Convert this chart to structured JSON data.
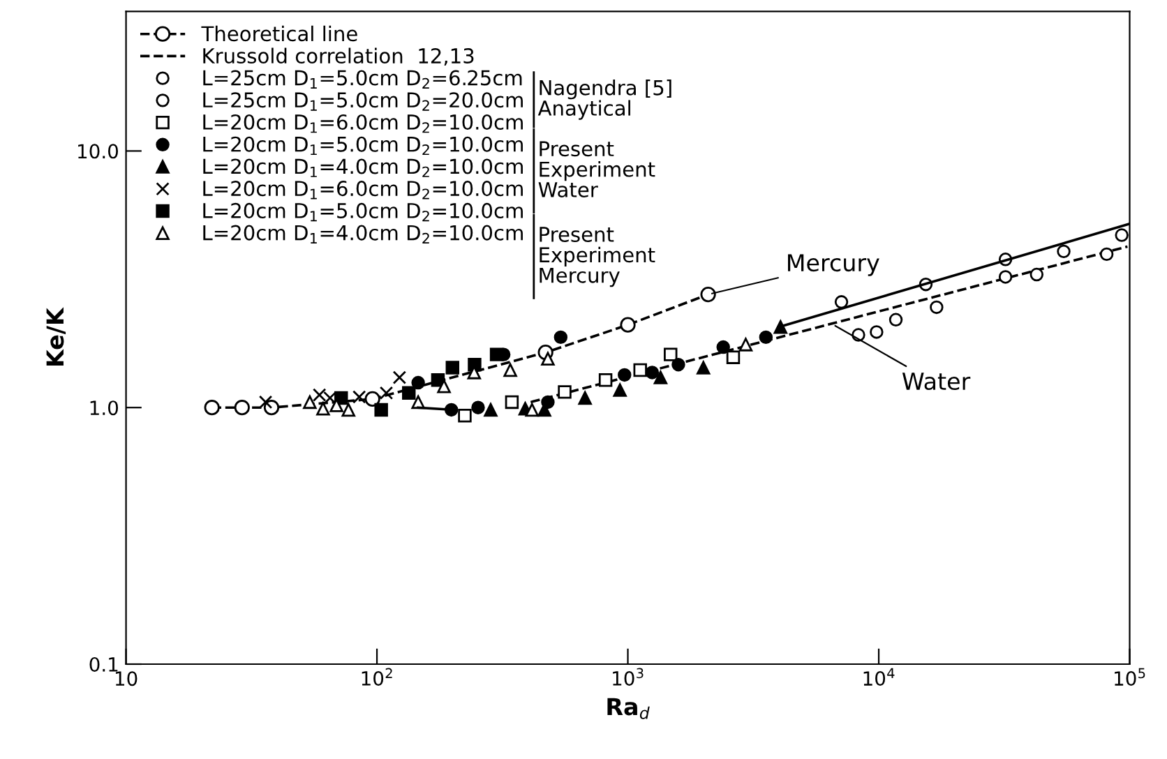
{
  "chart_data": {
    "type": "scatter",
    "xlabel": "Ra$_{d}$",
    "ylabel": "Ke/K",
    "log": "xy",
    "xlim": [
      10,
      100000
    ],
    "ylim": [
      0.1,
      35
    ],
    "xticks": [
      10,
      {
        "value": 100,
        "label": "10$^{2}$"
      },
      {
        "value": 1000,
        "label": "10$^{3}$"
      },
      {
        "value": 10000,
        "label": "10$^{4}$"
      },
      {
        "value": 100000,
        "label": "10$^{5}$"
      }
    ],
    "yticks": [
      0.1,
      {
        "value": 1,
        "label": "1.0"
      },
      {
        "value": 10,
        "label": "10.0"
      }
    ],
    "grid": false,
    "legend": "top left",
    "series": [
      {
        "name": "Theoretical line",
        "type": "line",
        "color": "#ffffff",
        "marker": "circle",
        "line_style": "dashed",
        "x": [
          22,
          29,
          38,
          96,
          470,
          1000,
          2090
        ],
        "values": [
          1.0,
          1.0,
          1.0,
          1.08,
          1.64,
          2.1,
          2.76
        ]
      },
      {
        "name": "Krussold correlation  12,13",
        "type": "line",
        "color": "#000000",
        "marker": "none",
        "line_style": "dashed",
        "x": [
          410,
          98000
        ],
        "values": [
          1.05,
          4.24
        ]
      },
      {
        "name": "L=25cm D$_{1}$=5.0cm D$_{2}$=6.25cm",
        "color": "#ffffff",
        "marker": "circle",
        "x": [
          9800,
          17000,
          32000,
          42600,
          81000
        ],
        "values": [
          1.97,
          2.46,
          3.23,
          3.3,
          3.96
        ]
      },
      {
        "name": "L=25cm D$_{1}$=5.0cm D$_{2}$=20.0cm",
        "color": "#ffffff",
        "marker": "circle",
        "x": [
          7100,
          8300,
          11700,
          15400,
          32000,
          54600,
          93000
        ],
        "values": [
          2.58,
          1.92,
          2.2,
          3.02,
          3.78,
          4.06,
          4.7
        ]
      },
      {
        "name": "L=20cm D$_{1}$=6.0cm D$_{2}$=10.0cm",
        "color": "#ffffff",
        "marker": "square",
        "x": [
          224,
          345,
          560,
          815,
          1120,
          1480,
          2630
        ],
        "values": [
          0.93,
          1.05,
          1.15,
          1.28,
          1.4,
          1.61,
          1.57
        ]
      },
      {
        "name": "L=20cm D$_{1}$=5.0cm D$_{2}$=10.0cm",
        "color": "#000000",
        "marker": "circle",
        "x": [
          146,
          198,
          253,
          320,
          480,
          540,
          970,
          1250,
          1590,
          2400,
          3550
        ],
        "values": [
          1.25,
          0.98,
          1.0,
          1.61,
          1.05,
          1.88,
          1.34,
          1.37,
          1.47,
          1.72,
          1.88
        ]
      },
      {
        "name": "L=20cm D$_{1}$=4.0cm D$_{2}$=10.0cm",
        "color": "#000000",
        "marker": "triangle",
        "x": [
          284,
          390,
          465,
          675,
          930,
          1350,
          2000,
          4060
        ],
        "values": [
          0.98,
          0.99,
          0.98,
          1.09,
          1.17,
          1.31,
          1.43,
          2.06
        ]
      },
      {
        "name": "L=20cm D$_{1}$=6.0cm D$_{2}$=10.0cm",
        "color": "#000000",
        "marker": "cross",
        "x": [
          36,
          59,
          65,
          85,
          109,
          123
        ],
        "values": [
          1.05,
          1.12,
          1.09,
          1.1,
          1.14,
          1.31
        ]
      },
      {
        "name": "L=20cm D$_{1}$=5.0cm D$_{2}$=10.0cm",
        "color": "#000000",
        "marker": "square",
        "x": [
          72,
          104,
          134,
          175,
          200,
          245,
          300
        ],
        "values": [
          1.09,
          0.98,
          1.14,
          1.28,
          1.43,
          1.47,
          1.61
        ]
      },
      {
        "name": "L=20cm D$_{1}$=4.0cm D$_{2}$=10.0cm",
        "color": "#ffffff",
        "marker": "triangle",
        "x": [
          54,
          61,
          69,
          77,
          146,
          185,
          244,
          340,
          415,
          480,
          2950
        ],
        "values": [
          1.05,
          0.99,
          1.02,
          0.98,
          1.05,
          1.21,
          1.37,
          1.4,
          0.98,
          1.55,
          1.76
        ]
      },
      {
        "type": "line",
        "color": "#000000",
        "marker": "none",
        "line_style": "solid",
        "x": [
          146,
          200
        ],
        "values": [
          1.0,
          0.98
        ]
      },
      {
        "type": "line",
        "color": "#000000",
        "marker": "none",
        "line_style": "solid",
        "x": [
          4000,
          100000
        ],
        "values": [
          2.06,
          5.2
        ]
      }
    ],
    "annotations": [
      "Nagendra [5]\nAnaytical",
      "Present\nExperiment\nWater",
      "Present\nExperiment\nMercury",
      {
        "text": "Mercury",
        "x": 2090,
        "y": 2.76
      },
      {
        "text": "Water",
        "x": 6500,
        "y": 2.12
      }
    ]
  }
}
